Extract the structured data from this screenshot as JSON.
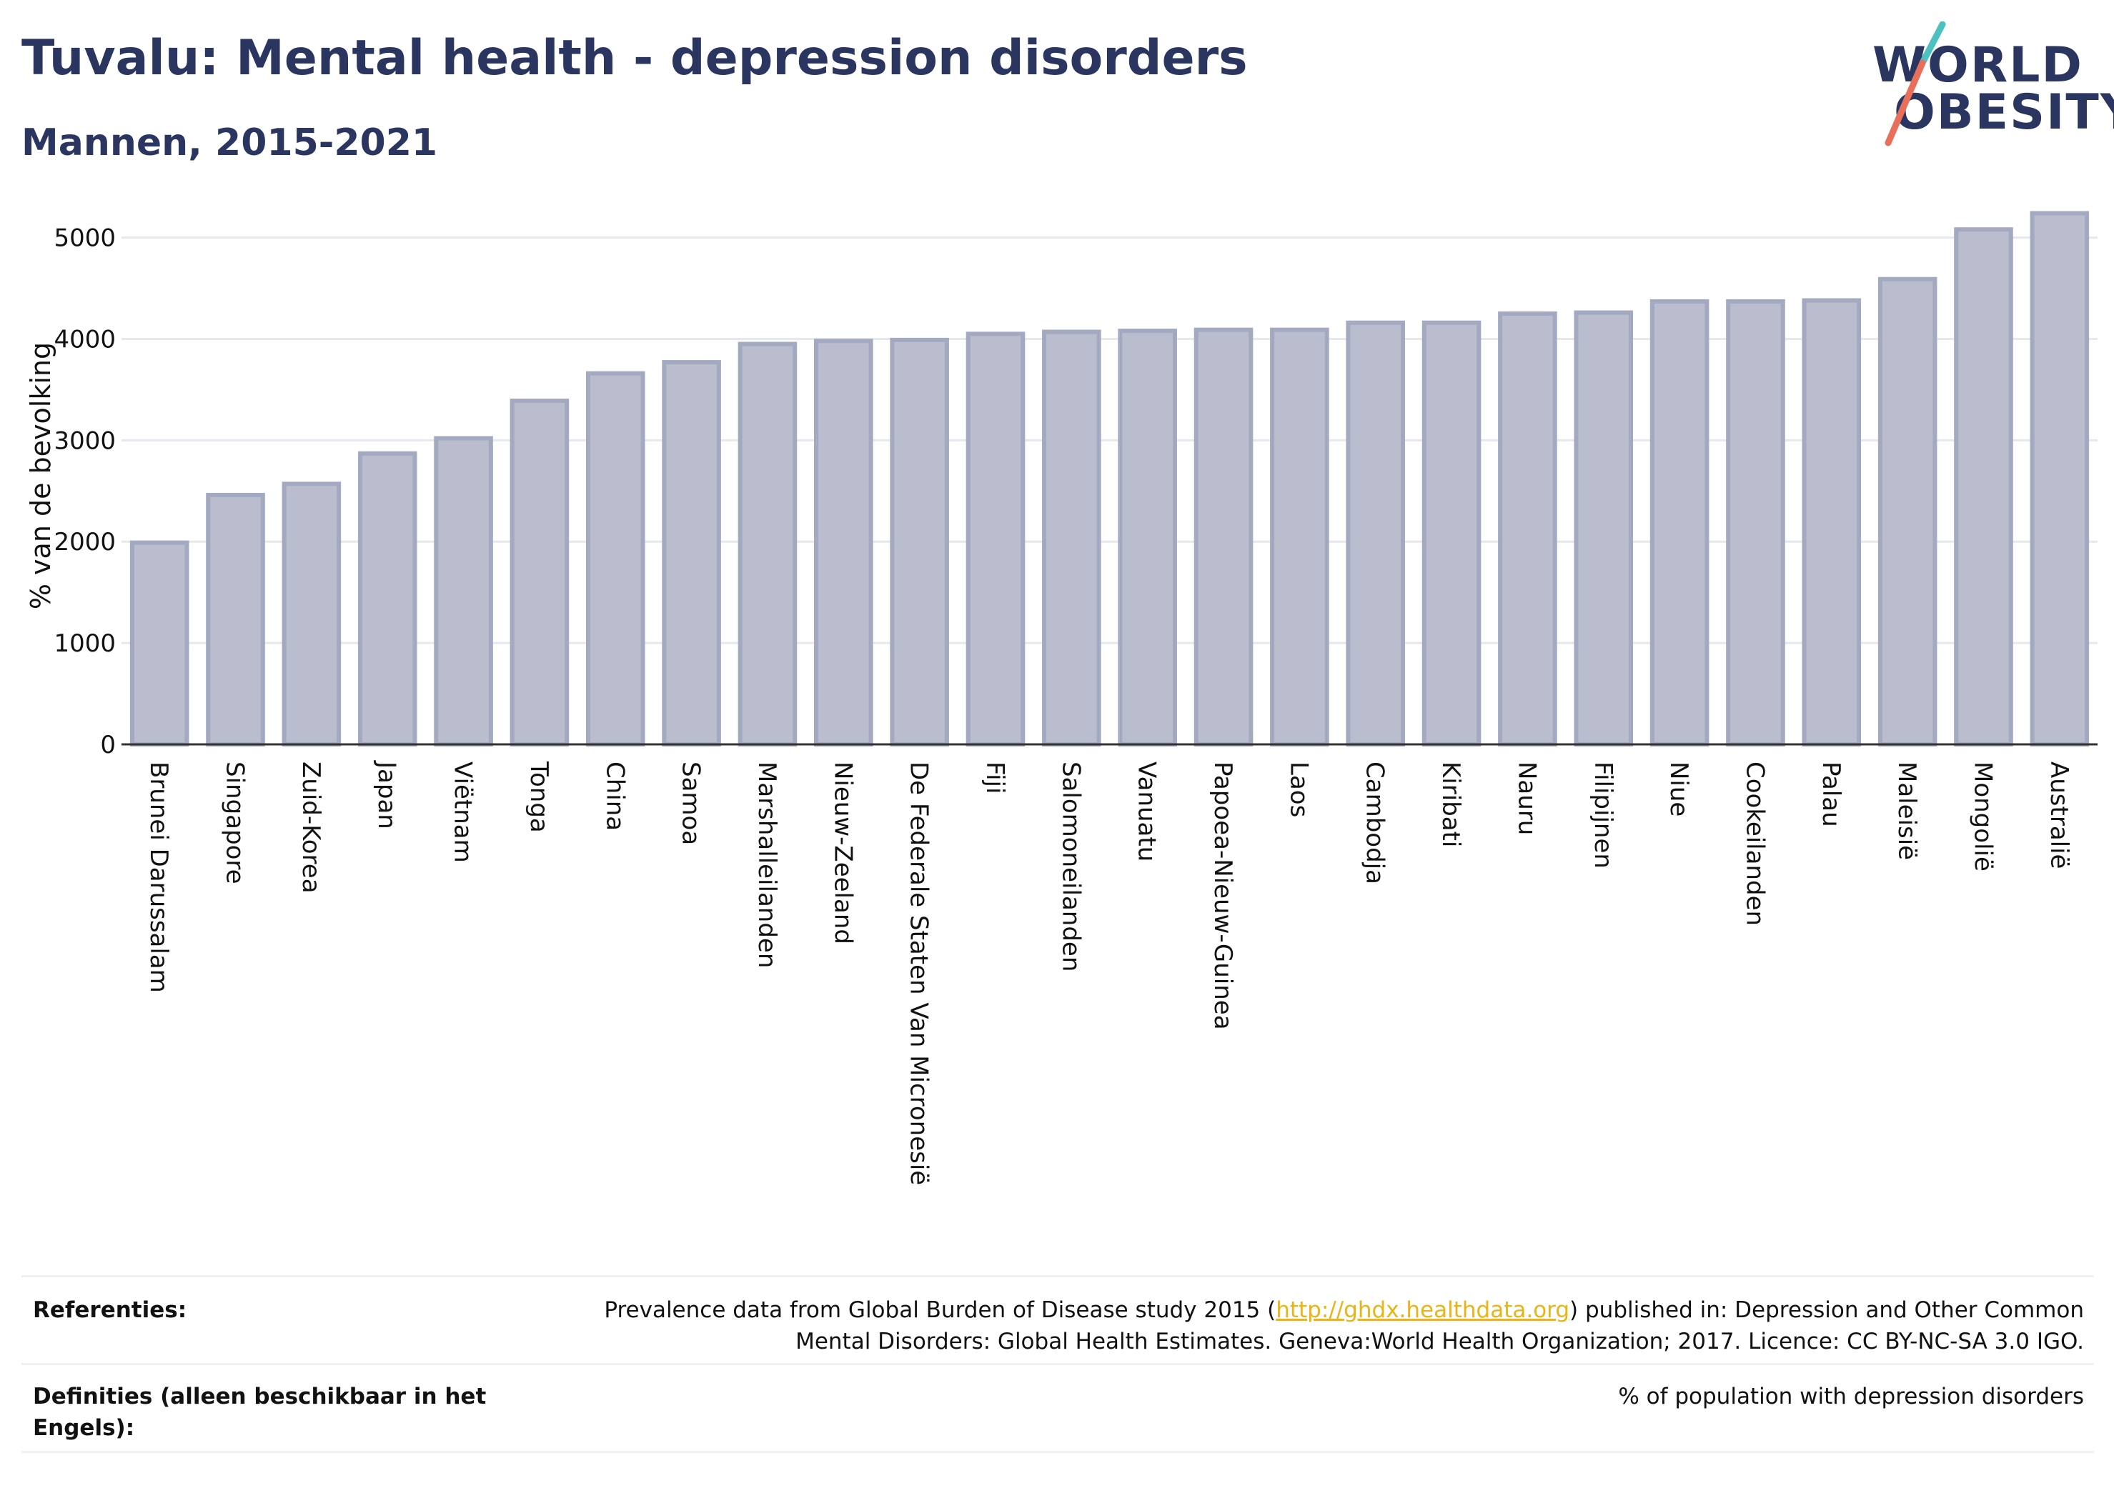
{
  "header": {
    "title": "Tuvalu: Mental health - depression disorders",
    "subtitle": "Mannen, 2015-2021"
  },
  "logo": {
    "line1": "WORLD",
    "line2": "OBESITY",
    "accent_colors": [
      "#4cc2c0",
      "#e8705a"
    ]
  },
  "chart_data": {
    "type": "bar",
    "ylabel": "% van de bevolking",
    "ylim": [
      0,
      5300
    ],
    "yticks": [
      0,
      1000,
      2000,
      3000,
      4000,
      5000
    ],
    "grid": true,
    "bar_color": "#b9bdcd",
    "bar_edge_color": "#a3a9c0",
    "categories": [
      "Brunei Darussalam",
      "Singapore",
      "Zuid-Korea",
      "Japan",
      "Viëtnam",
      "Tonga",
      "China",
      "Samoa",
      "Marshalleilanden",
      "Nieuw-Zeeland",
      "De Federale Staten Van Micronesië",
      "Fiji",
      "Salomoneilanden",
      "Vanuatu",
      "Papoea-Nieuw-Guinea",
      "Laos",
      "Cambodja",
      "Kiribati",
      "Nauru",
      "Filipijnen",
      "Niue",
      "Cookeilanden",
      "Palau",
      "Maleisië",
      "Mongolië",
      "Australië"
    ],
    "values": [
      1990,
      2460,
      2570,
      2870,
      3020,
      3390,
      3660,
      3770,
      3950,
      3980,
      3990,
      4050,
      4070,
      4080,
      4090,
      4090,
      4160,
      4160,
      4250,
      4260,
      4370,
      4370,
      4380,
      4590,
      5080,
      5240
    ]
  },
  "references": {
    "ref_label": "Referenties:",
    "ref_text_before": "Prevalence data from Global Burden of Disease study 2015 (",
    "ref_link": "http://ghdx.healthdata.org",
    "ref_text_after": ") published in: Depression and Other Common",
    "ref_text_line2": "Mental Disorders: Global Health Estimates. Geneva:World Health Organization; 2017. Licence: CC BY-NC-SA 3.0 IGO.",
    "def_label": "Definities (alleen beschikbaar in het Engels):",
    "def_text": "% of population with depression disorders"
  }
}
